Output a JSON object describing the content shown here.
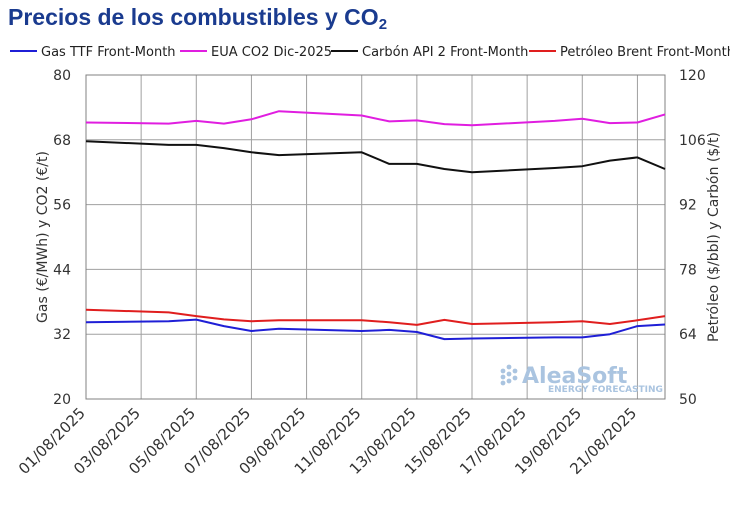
{
  "title": {
    "main": "Precios de los combustibles y CO",
    "sub": "2"
  },
  "watermark": {
    "brand": "AleaSoft",
    "tagline": "ENERGY FORECASTING",
    "color": "#aac4e0"
  },
  "chart_data": {
    "type": "line",
    "x": [
      "01/08/2025",
      "04/08/2025",
      "05/08/2025",
      "06/08/2025",
      "07/08/2025",
      "08/08/2025",
      "11/08/2025",
      "12/08/2025",
      "13/08/2025",
      "14/08/2025",
      "15/08/2025",
      "18/08/2025",
      "19/08/2025",
      "20/08/2025",
      "21/08/2025",
      "22/08/2025"
    ],
    "x_ticks": [
      "01/08/2025",
      "03/08/2025",
      "05/08/2025",
      "07/08/2025",
      "09/08/2025",
      "11/08/2025",
      "13/08/2025",
      "15/08/2025",
      "17/08/2025",
      "19/08/2025",
      "21/08/2025"
    ],
    "y_left": {
      "label": "Gas (€/MWh) y CO2 (€/t)",
      "lim": [
        20,
        80
      ],
      "ticks": [
        20,
        32,
        44,
        56,
        68,
        80
      ]
    },
    "y_right": {
      "label": "Petróleo ($/bbl) y Carbón ($/t)",
      "lim": [
        50,
        120
      ],
      "ticks": [
        50,
        64,
        78,
        92,
        106,
        120
      ]
    },
    "grid": true,
    "legend_position": "top",
    "series": [
      {
        "name": "Gas TTF Front-Month",
        "axis": "left",
        "color": "#1f1fd6",
        "values": [
          34.2,
          34.4,
          34.7,
          33.5,
          32.6,
          33.0,
          32.6,
          32.8,
          32.4,
          31.1,
          31.2,
          31.4,
          31.4,
          32.0,
          33.5,
          33.8
        ]
      },
      {
        "name": "EUA CO2 Dic-2025",
        "axis": "left",
        "color": "#e01ee0",
        "values": [
          71.2,
          71.0,
          71.5,
          71.0,
          71.8,
          73.3,
          72.5,
          71.4,
          71.6,
          70.9,
          70.7,
          71.5,
          71.9,
          71.1,
          71.2,
          72.7
        ]
      },
      {
        "name": "Carbón API 2 Front-Month",
        "axis": "right",
        "color": "#111111",
        "values": [
          105.7,
          104.9,
          104.9,
          104.2,
          103.3,
          102.7,
          103.3,
          100.8,
          100.8,
          99.7,
          99.0,
          99.9,
          100.3,
          101.5,
          102.2,
          99.7
        ]
      },
      {
        "name": "Petróleo Brent Front-Month",
        "axis": "right",
        "color": "#e01e1e",
        "values": [
          69.3,
          68.7,
          67.9,
          67.2,
          66.8,
          67.0,
          67.0,
          66.6,
          66.0,
          67.1,
          66.2,
          66.6,
          66.8,
          66.2,
          67.0,
          67.9
        ]
      }
    ]
  }
}
